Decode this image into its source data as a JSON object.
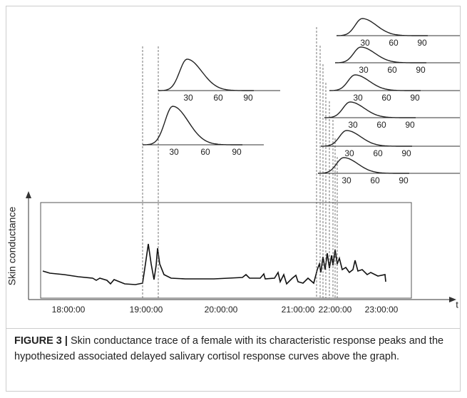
{
  "figure": {
    "y_axis_label": "Skin conductance",
    "x_axis_label": "t",
    "x_tick_labels": [
      "18:00:00",
      "19:00:00",
      "20:00:00",
      "21:00:00",
      "22:00:00",
      "23:00:00"
    ],
    "response_curves": [
      {
        "ticks": [
          30,
          60,
          90
        ]
      },
      {
        "ticks": [
          30,
          60,
          90
        ]
      },
      {
        "ticks": [
          30,
          60,
          90
        ]
      },
      {
        "ticks": [
          30,
          60,
          90
        ]
      },
      {
        "ticks": [
          30,
          60,
          90
        ]
      },
      {
        "ticks": [
          30,
          60,
          90
        ]
      },
      {
        "ticks": [
          30,
          60,
          90
        ]
      },
      {
        "ticks": [
          30,
          60,
          90
        ]
      }
    ],
    "caption_label": "FIGURE 3 |",
    "caption_text": "Skin conductance trace of a female with its characteristic response peaks and the hypothesized associated delayed salivary cortisol response curves above the graph."
  }
}
